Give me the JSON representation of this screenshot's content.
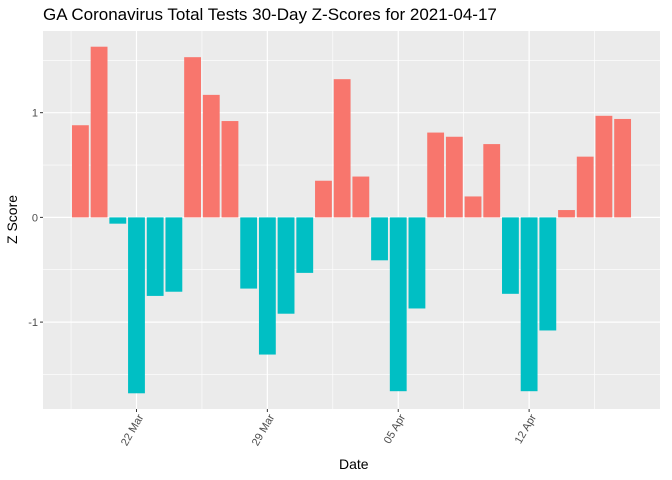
{
  "chart_data": {
    "type": "bar",
    "title": "GA Coronavirus Total Tests 30-Day Z-Scores for 2021-04-17",
    "xlabel": "Date",
    "ylabel": "Z Score",
    "ylim": [
      -1.83,
      1.78
    ],
    "y_ticks": [
      -1,
      0,
      1
    ],
    "y_tick_labels": [
      "-1",
      "0",
      "1"
    ],
    "x_tick_labels": [
      "22 Mar",
      "29 Mar",
      "05 Apr",
      "12 Apr"
    ],
    "x_tick_dates": [
      "2021-03-22",
      "2021-03-29",
      "2021-04-05",
      "2021-04-12"
    ],
    "x_range": [
      "2021-03-17",
      "2021-04-19"
    ],
    "grid": true,
    "positive_color": "#F8766D",
    "negative_color": "#00BFC4",
    "panel_color": "#EBEBEB",
    "dates": [
      "2021-03-19",
      "2021-03-20",
      "2021-03-21",
      "2021-03-22",
      "2021-03-23",
      "2021-03-24",
      "2021-03-25",
      "2021-03-26",
      "2021-03-27",
      "2021-03-28",
      "2021-03-29",
      "2021-03-30",
      "2021-03-31",
      "2021-04-01",
      "2021-04-02",
      "2021-04-03",
      "2021-04-04",
      "2021-04-05",
      "2021-04-06",
      "2021-04-07",
      "2021-04-08",
      "2021-04-09",
      "2021-04-10",
      "2021-04-11",
      "2021-04-12",
      "2021-04-13",
      "2021-04-14",
      "2021-04-15",
      "2021-04-16",
      "2021-04-17"
    ],
    "values": [
      0.88,
      1.63,
      -0.06,
      -1.68,
      -0.75,
      -0.71,
      1.53,
      1.17,
      0.92,
      -0.68,
      -1.31,
      -0.92,
      -0.53,
      0.35,
      1.32,
      0.39,
      -0.41,
      -1.66,
      -0.87,
      0.81,
      0.77,
      0.2,
      0.7,
      -0.73,
      -1.66,
      -1.08,
      0.07,
      0.58,
      0.97,
      0.94
    ]
  }
}
